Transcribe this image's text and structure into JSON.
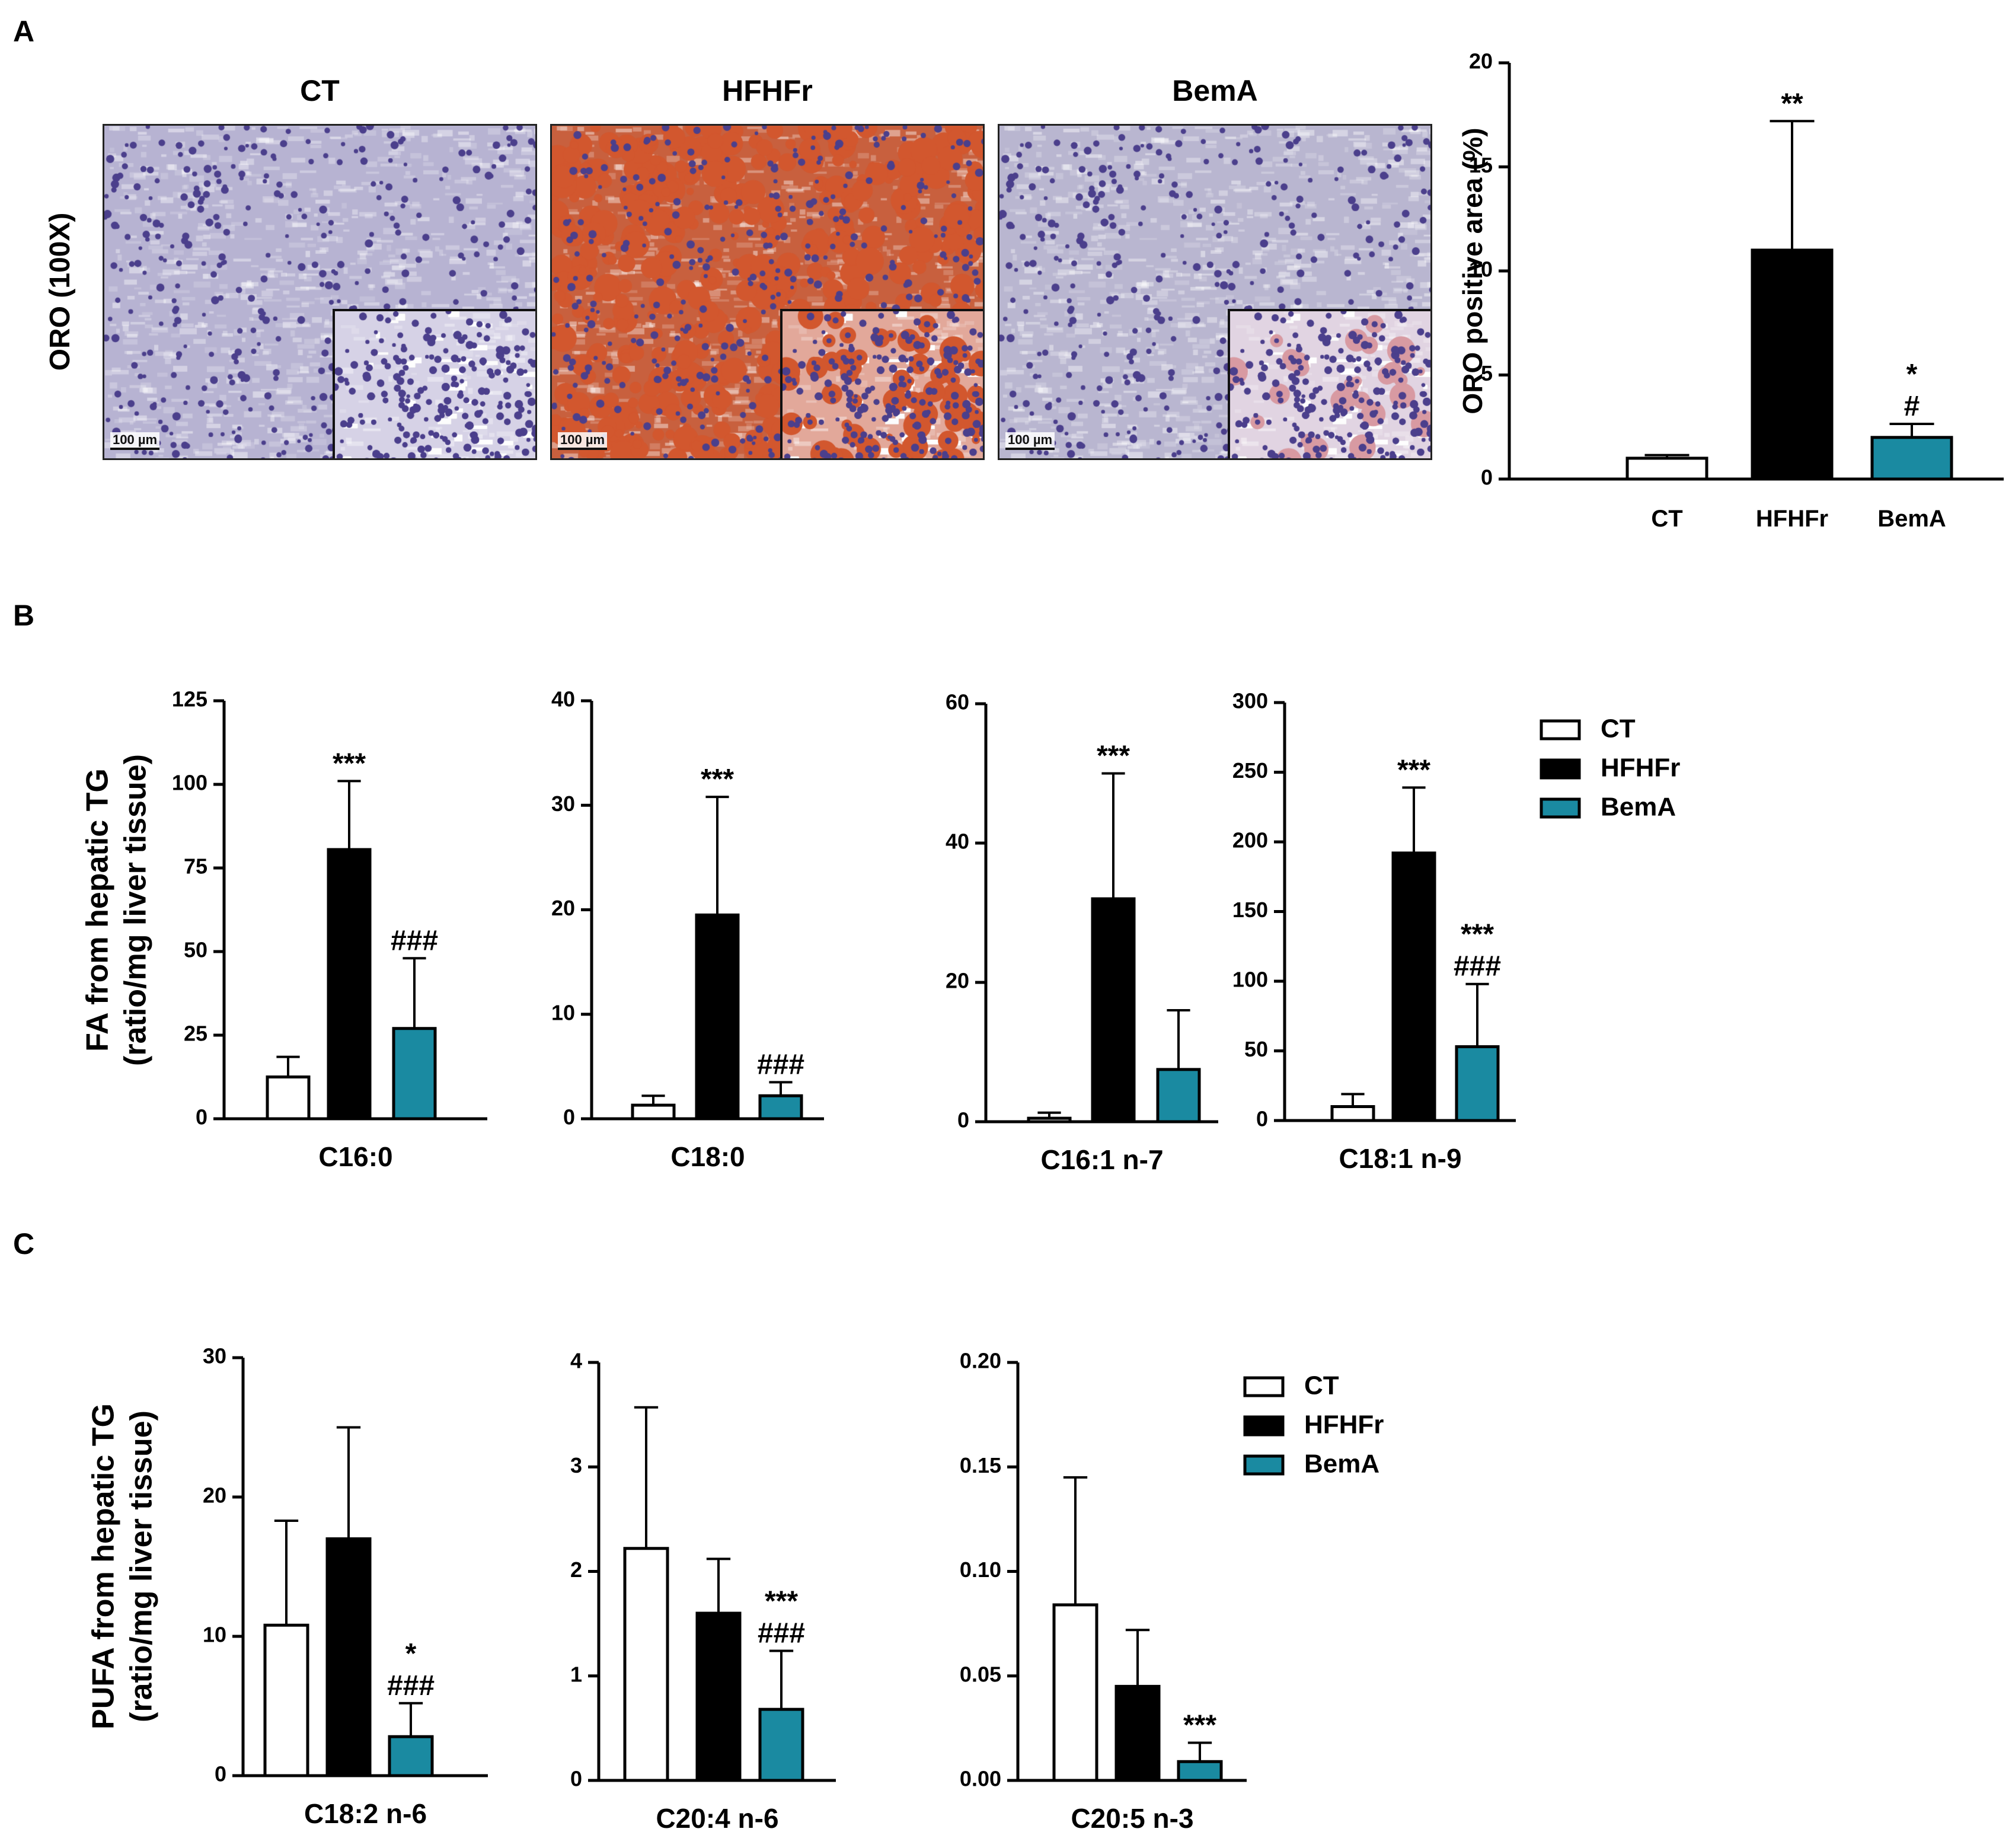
{
  "panel_letters": [
    "A",
    "B",
    "C"
  ],
  "panelA": {
    "row_label": "ORO (100X)",
    "images": [
      {
        "title": "CT",
        "scale": "100 µm",
        "stain": "#b7b3d2",
        "inset": "#d6d2e6"
      },
      {
        "title": "HFHFr",
        "scale": "100 µm",
        "stain": "#c8603e",
        "inset": "#e2a89a"
      },
      {
        "title": "BemA",
        "scale": "100 µm",
        "stain": "#b9b6d0",
        "inset": "#e1d4e2"
      }
    ]
  },
  "colors": {
    "CT": "#ffffff",
    "HFHFr": "#000000",
    "BemA": "#1a8aa1",
    "nuclei": "#4b3f8c",
    "lipid": "#d2572e"
  },
  "legend_labels": [
    "CT",
    "HFHFr",
    "BemA"
  ],
  "chart_data": [
    {
      "id": "A-oro",
      "type": "bar",
      "categories": [
        "CT",
        "HFHFr",
        "BemA"
      ],
      "values": [
        1.0,
        11.0,
        2.0
      ],
      "errors": [
        0.15,
        6.2,
        0.65
      ],
      "annotations": [
        [],
        [
          "**"
        ],
        [
          "*",
          "#"
        ]
      ],
      "ylabel": "ORO positive area (%)",
      "xlabel": "",
      "ylim": [
        0,
        20
      ],
      "yticks": [
        0,
        5,
        10,
        15,
        20
      ],
      "ytick_labels": [
        "0",
        "5",
        "10",
        "15",
        "20"
      ]
    },
    {
      "id": "B-c160",
      "type": "bar",
      "categories": [
        "CT",
        "HFHFr",
        "BemA"
      ],
      "values": [
        12.5,
        80.5,
        27.0
      ],
      "errors": [
        6,
        20.5,
        21
      ],
      "annotations": [
        [],
        [
          "***"
        ],
        [
          "###"
        ]
      ],
      "ylabel": "FA from hepatic TG\n(ratio/mg liver tissue)",
      "xlabel": "C16:0",
      "ylim": [
        0,
        125
      ],
      "yticks": [
        0,
        25,
        50,
        75,
        100,
        125
      ],
      "ytick_labels": [
        "0",
        "25",
        "50",
        "75",
        "100",
        "125"
      ]
    },
    {
      "id": "B-c180",
      "type": "bar",
      "categories": [
        "CT",
        "HFHFr",
        "BemA"
      ],
      "values": [
        1.3,
        19.5,
        2.2
      ],
      "errors": [
        0.9,
        11.3,
        1.3
      ],
      "annotations": [
        [],
        [
          "***"
        ],
        [
          "###"
        ]
      ],
      "ylabel": "",
      "xlabel": "C18:0",
      "ylim": [
        0,
        40
      ],
      "yticks": [
        0,
        10,
        20,
        30,
        40
      ],
      "ytick_labels": [
        "0",
        "10",
        "20",
        "30",
        "40"
      ]
    },
    {
      "id": "B-c161",
      "type": "bar",
      "categories": [
        "CT",
        "HFHFr",
        "BemA"
      ],
      "values": [
        0.5,
        32.0,
        7.5
      ],
      "errors": [
        0.8,
        18,
        8.5
      ],
      "annotations": [
        [],
        [
          "***"
        ],
        []
      ],
      "ylabel": "",
      "xlabel": "C16:1 n-7",
      "ylim": [
        0,
        60
      ],
      "yticks": [
        0,
        20,
        40,
        60
      ],
      "ytick_labels": [
        "0",
        "20",
        "40",
        "60"
      ]
    },
    {
      "id": "B-c181",
      "type": "bar",
      "categories": [
        "CT",
        "HFHFr",
        "BemA"
      ],
      "values": [
        10,
        192,
        53
      ],
      "errors": [
        9,
        47,
        45
      ],
      "annotations": [
        [],
        [
          "***"
        ],
        [
          "***",
          "###"
        ]
      ],
      "ylabel": "",
      "xlabel": "C18:1 n-9",
      "ylim": [
        0,
        300
      ],
      "yticks": [
        0,
        50,
        100,
        150,
        200,
        250,
        300
      ],
      "ytick_labels": [
        "0",
        "50",
        "100",
        "150",
        "200",
        "250",
        "300"
      ]
    },
    {
      "id": "C-c182",
      "type": "bar",
      "categories": [
        "CT",
        "HFHFr",
        "BemA"
      ],
      "values": [
        10.8,
        17.0,
        2.8
      ],
      "errors": [
        7.5,
        8.0,
        2.4
      ],
      "annotations": [
        [],
        [],
        [
          "*",
          "###"
        ]
      ],
      "ylabel": "PUFA from hepatic TG\n(ratio/mg liver tissue)",
      "xlabel": "C18:2 n-6",
      "ylim": [
        0,
        30
      ],
      "yticks": [
        0,
        10,
        20,
        30
      ],
      "ytick_labels": [
        "0",
        "10",
        "20",
        "30"
      ]
    },
    {
      "id": "C-c204",
      "type": "bar",
      "categories": [
        "CT",
        "HFHFr",
        "BemA"
      ],
      "values": [
        2.22,
        1.6,
        0.68
      ],
      "errors": [
        1.35,
        0.52,
        0.56
      ],
      "annotations": [
        [],
        [],
        [
          "***",
          "###"
        ]
      ],
      "ylabel": "",
      "xlabel": "C20:4 n-6",
      "ylim": [
        0,
        4
      ],
      "yticks": [
        0,
        1,
        2,
        3,
        4
      ],
      "ytick_labels": [
        "0",
        "1",
        "2",
        "3",
        "4"
      ]
    },
    {
      "id": "C-c205",
      "type": "bar",
      "categories": [
        "CT",
        "HFHFr",
        "BemA"
      ],
      "values": [
        0.084,
        0.045,
        0.009
      ],
      "errors": [
        0.061,
        0.027,
        0.009
      ],
      "annotations": [
        [],
        [],
        [
          "***"
        ]
      ],
      "ylabel": "",
      "xlabel": "C20:5 n-3",
      "ylim": [
        0,
        0.2
      ],
      "yticks": [
        0,
        0.05,
        0.1,
        0.15,
        0.2
      ],
      "ytick_labels": [
        "0.00",
        "0.05",
        "0.10",
        "0.15",
        "0.20"
      ]
    }
  ]
}
